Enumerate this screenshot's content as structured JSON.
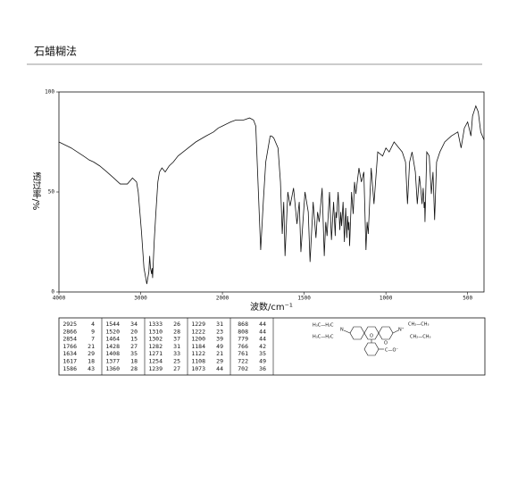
{
  "header": {
    "title": "石蜡糊法"
  },
  "chart_data": {
    "type": "line",
    "xlabel": "波数/cm⁻¹",
    "ylabel": "透过率/%",
    "x": [
      4000,
      3850,
      3700,
      3630,
      3576,
      3500,
      3413,
      3330,
      3250,
      3163,
      3100,
      3050,
      3030,
      2990,
      2960,
      2925,
      2900,
      2890,
      2880,
      2866,
      2860,
      2854,
      2835,
      2815,
      2790,
      2770,
      2740,
      2700,
      2652,
      2600,
      2543,
      2450,
      2326,
      2200,
      2109,
      2050,
      2000,
      1950,
      1917,
      1870,
      1834,
      1810,
      1796,
      1780,
      1766,
      1750,
      1735,
      1708,
      1700,
      1686,
      1660,
      1645,
      1634,
      1625,
      1617,
      1600,
      1586,
      1565,
      1544,
      1530,
      1520,
      1495,
      1475,
      1464,
      1445,
      1428,
      1418,
      1408,
      1390,
      1377,
      1368,
      1360,
      1345,
      1333,
      1320,
      1310,
      1306,
      1302,
      1292,
      1282,
      1276,
      1271,
      1262,
      1254,
      1246,
      1239,
      1234,
      1229,
      1226,
      1222,
      1210,
      1200,
      1192,
      1184,
      1165,
      1150,
      1135,
      1122,
      1115,
      1108,
      1090,
      1073,
      1050,
      1020,
      1000,
      980,
      950,
      920,
      900,
      880,
      868,
      855,
      840,
      820,
      808,
      795,
      785,
      779,
      772,
      766,
      763,
      761,
      750,
      735,
      722,
      712,
      702,
      690,
      670,
      640,
      600,
      560,
      540,
      520,
      500,
      480,
      470,
      450,
      435,
      420,
      400
    ],
    "series": [
      {
        "color": "#111111",
        "values": [
          75,
          72,
          68,
          66,
          65,
          63,
          60,
          57,
          54,
          54,
          57,
          55,
          50,
          30,
          12,
          4,
          10,
          18,
          12,
          9,
          12,
          7,
          25,
          39,
          55,
          60,
          62,
          60,
          63,
          65,
          68,
          71,
          75,
          78,
          80,
          82,
          83,
          85,
          86,
          86,
          87,
          86,
          83,
          50,
          21,
          45,
          65,
          78,
          78,
          77,
          72,
          55,
          29,
          45,
          18,
          50,
          43,
          52,
          34,
          45,
          20,
          50,
          40,
          15,
          45,
          27,
          40,
          35,
          52,
          18,
          35,
          28,
          50,
          26,
          45,
          28,
          40,
          37,
          50,
          31,
          40,
          33,
          45,
          25,
          42,
          27,
          38,
          31,
          35,
          23,
          50,
          39,
          55,
          49,
          62,
          55,
          60,
          21,
          35,
          29,
          62,
          44,
          70,
          68,
          72,
          70,
          75,
          72,
          70,
          65,
          44,
          65,
          70,
          60,
          44,
          58,
          50,
          44,
          52,
          42,
          45,
          35,
          70,
          68,
          49,
          60,
          36,
          65,
          70,
          75,
          78,
          80,
          72,
          82,
          85,
          78,
          88,
          93,
          90,
          80,
          76
        ]
      }
    ],
    "xlim": [
      4000,
      400
    ],
    "ylim": [
      0,
      100
    ],
    "x_scale_change": {
      "at": 2000,
      "factor": 2
    },
    "xticks": [
      4000,
      3000,
      2000,
      1500,
      1000,
      500
    ],
    "yticks": [
      0,
      50,
      100
    ]
  },
  "peak_table": {
    "columns": [
      [
        [
          2925,
          4
        ],
        [
          2866,
          9
        ],
        [
          2854,
          7
        ],
        [
          1766,
          21
        ],
        [
          1634,
          29
        ],
        [
          1617,
          18
        ],
        [
          1586,
          43
        ]
      ],
      [
        [
          1544,
          34
        ],
        [
          1520,
          20
        ],
        [
          1464,
          15
        ],
        [
          1428,
          27
        ],
        [
          1408,
          35
        ],
        [
          1377,
          18
        ],
        [
          1360,
          28
        ]
      ],
      [
        [
          1333,
          26
        ],
        [
          1310,
          28
        ],
        [
          1302,
          37
        ],
        [
          1282,
          31
        ],
        [
          1271,
          33
        ],
        [
          1254,
          25
        ],
        [
          1239,
          27
        ]
      ],
      [
        [
          1229,
          31
        ],
        [
          1222,
          23
        ],
        [
          1200,
          39
        ],
        [
          1184,
          49
        ],
        [
          1122,
          21
        ],
        [
          1108,
          29
        ],
        [
          1073,
          44
        ]
      ],
      [
        [
          868,
          44
        ],
        [
          808,
          44
        ],
        [
          779,
          44
        ],
        [
          766,
          42
        ],
        [
          761,
          35
        ],
        [
          722,
          49
        ],
        [
          702,
          36
        ]
      ]
    ]
  },
  "structure": {
    "left_top": "H₃C—H₂C",
    "left_n": "N",
    "left_bottom": "H₃C—H₂C",
    "right_top": "CH₂—CH₃",
    "right_n": "N⁺",
    "right_bottom": "CH₂—CH₃",
    "ring_o": "O",
    "carboxyl": "C—O⁻",
    "carbonyl_o": "O"
  }
}
